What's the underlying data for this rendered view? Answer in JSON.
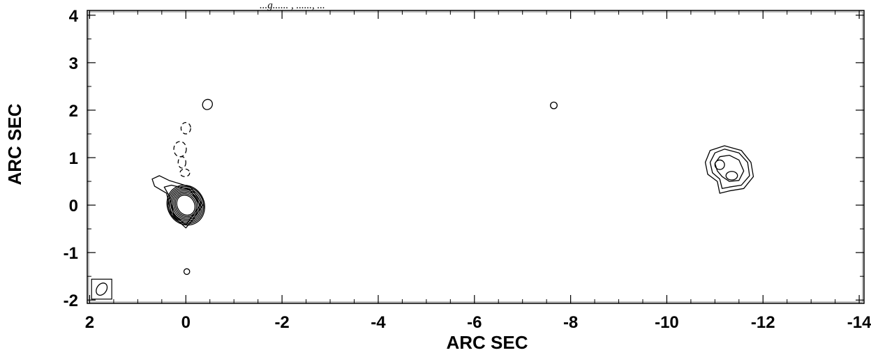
{
  "chart_data": {
    "type": "contour",
    "title": "",
    "top_caption": "...g...... ,  ......,  ...",
    "xlabel": "ARC SEC",
    "ylabel": "ARC SEC",
    "xlim": [
      2.05,
      -14.1
    ],
    "ylim": [
      -2.07,
      4.1
    ],
    "x_reversed": true,
    "x_ticks": [
      2,
      0,
      -2,
      -4,
      -6,
      -8,
      -10,
      -12,
      -14
    ],
    "y_ticks": [
      4,
      3,
      2,
      1,
      0,
      -1,
      -2
    ],
    "grid": false,
    "colors": {
      "line": "#000000",
      "background": "#ffffff"
    },
    "sources": [
      {
        "name": "core",
        "center": [
          0.0,
          0.0
        ],
        "positive_levels": [
          {
            "rx": 0.18,
            "ry": 0.22,
            "angle_deg": -30
          },
          {
            "rx": 0.21,
            "ry": 0.25,
            "angle_deg": -30
          },
          {
            "rx": 0.24,
            "ry": 0.28,
            "angle_deg": -30
          },
          {
            "rx": 0.27,
            "ry": 0.31,
            "angle_deg": -30
          },
          {
            "rx": 0.3,
            "ry": 0.34,
            "angle_deg": -30
          },
          {
            "rx": 0.33,
            "ry": 0.37,
            "angle_deg": -30
          },
          {
            "rx": 0.36,
            "ry": 0.4,
            "angle_deg": -30
          },
          {
            "rx": 0.38,
            "ry": 0.43,
            "angle_deg": -30
          }
        ],
        "extension_contours": [
          [
            [
              -0.15,
              -0.3
            ],
            [
              -0.35,
              0.0
            ],
            [
              -0.1,
              0.38
            ],
            [
              0.35,
              0.52
            ],
            [
              0.55,
              0.62
            ],
            [
              0.7,
              0.55
            ],
            [
              0.65,
              0.4
            ],
            [
              0.4,
              0.25
            ],
            [
              0.3,
              -0.2
            ],
            [
              0.0,
              -0.48
            ]
          ],
          [
            [
              -0.12,
              -0.25
            ],
            [
              -0.3,
              0.0
            ],
            [
              -0.08,
              0.33
            ],
            [
              0.3,
              0.42
            ],
            [
              0.45,
              0.38
            ],
            [
              0.35,
              0.2
            ],
            [
              0.25,
              -0.2
            ],
            [
              0.0,
              -0.42
            ]
          ]
        ],
        "negative_levels": [
          {
            "cx": 0.0,
            "cy": 1.62,
            "rx": 0.1,
            "ry": 0.12
          },
          {
            "cx": 0.12,
            "cy": 1.18,
            "rx": 0.13,
            "ry": 0.16
          },
          {
            "cx": 0.08,
            "cy": 0.9,
            "rx": 0.08,
            "ry": 0.12
          },
          {
            "cx": 0.02,
            "cy": 0.68,
            "rx": 0.1,
            "ry": 0.08
          }
        ]
      },
      {
        "name": "knot",
        "center": [
          -11.3,
          0.75
        ],
        "contours": [
          [
            [
              -10.8,
              0.9
            ],
            [
              -10.9,
              1.15
            ],
            [
              -11.2,
              1.25
            ],
            [
              -11.55,
              1.15
            ],
            [
              -11.75,
              0.9
            ],
            [
              -11.8,
              0.6
            ],
            [
              -11.6,
              0.35
            ],
            [
              -11.3,
              0.3
            ],
            [
              -11.1,
              0.25
            ],
            [
              -11.05,
              0.5
            ],
            [
              -10.85,
              0.65
            ]
          ],
          [
            [
              -10.9,
              0.9
            ],
            [
              -11.0,
              1.1
            ],
            [
              -11.2,
              1.18
            ],
            [
              -11.5,
              1.1
            ],
            [
              -11.68,
              0.9
            ],
            [
              -11.72,
              0.62
            ],
            [
              -11.55,
              0.42
            ],
            [
              -11.3,
              0.38
            ],
            [
              -11.15,
              0.35
            ],
            [
              -11.1,
              0.55
            ],
            [
              -10.95,
              0.68
            ]
          ],
          [
            [
              -11.0,
              0.88
            ],
            [
              -11.1,
              1.02
            ],
            [
              -11.3,
              1.05
            ],
            [
              -11.5,
              0.95
            ],
            [
              -11.6,
              0.72
            ],
            [
              -11.5,
              0.52
            ],
            [
              -11.3,
              0.5
            ],
            [
              -11.15,
              0.6
            ],
            [
              -11.05,
              0.72
            ]
          ]
        ],
        "peaks": [
          {
            "cx": -11.1,
            "cy": 0.85,
            "rx": 0.1,
            "ry": 0.1
          },
          {
            "cx": -11.35,
            "cy": 0.62,
            "rx": 0.12,
            "ry": 0.09
          }
        ]
      }
    ],
    "noise_contours": [
      {
        "cx": -0.45,
        "cy": 2.12,
        "rx": 0.1,
        "ry": 0.11,
        "angle_deg": 30
      },
      {
        "cx": -7.65,
        "cy": 2.1,
        "rx": 0.07,
        "ry": 0.07,
        "angle_deg": 0
      },
      {
        "cx": -0.02,
        "cy": -1.4,
        "rx": 0.06,
        "ry": 0.06,
        "angle_deg": 0
      }
    ],
    "beam": {
      "cx": 1.75,
      "cy": -1.77,
      "rx": 0.1,
      "ry": 0.14,
      "angle_deg": 35,
      "box_halfwidth": 0.21,
      "box_halfheight": 0.21
    }
  }
}
